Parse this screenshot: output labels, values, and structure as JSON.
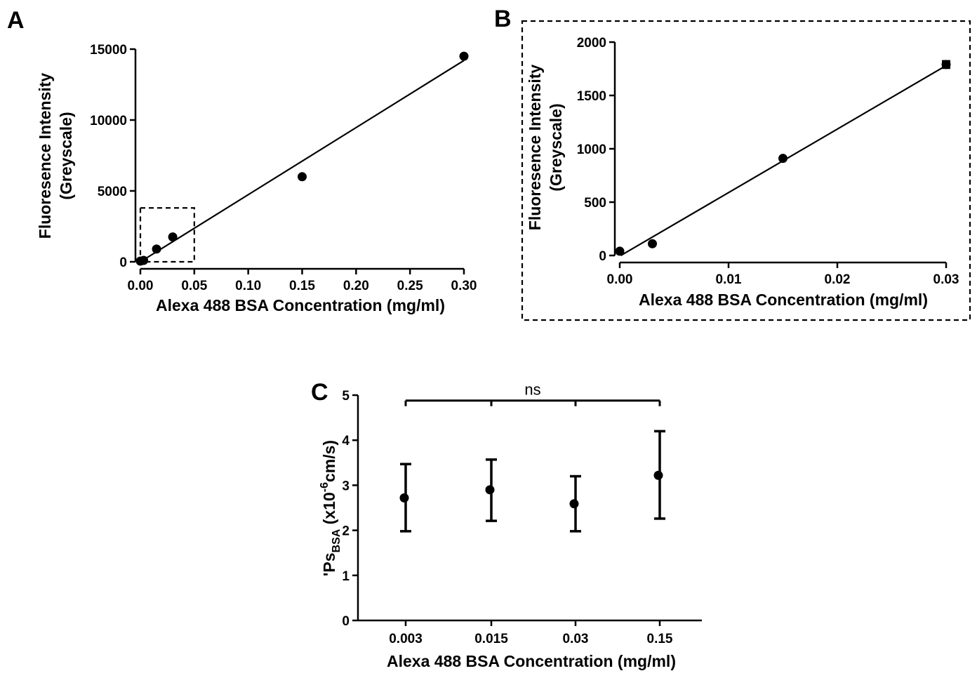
{
  "chart_data": [
    {
      "id": "A",
      "panel_label": "A",
      "type": "scatter",
      "xlabel": "Alexa 488 BSA Concentration (mg/ml)",
      "ylabel": [
        "Fluoresence Intensity",
        "(Greyscale)"
      ],
      "xlim": [
        0,
        0.3
      ],
      "ylim": [
        0,
        15000
      ],
      "xticks": [
        "0.00",
        "0.05",
        "0.10",
        "0.15",
        "0.20",
        "0.25",
        "0.30"
      ],
      "yticks": [
        "0",
        "5000",
        "10000",
        "15000"
      ],
      "points": [
        {
          "x": 0,
          "y": 50
        },
        {
          "x": 0.003,
          "y": 100
        },
        {
          "x": 0.015,
          "y": 900
        },
        {
          "x": 0.03,
          "y": 1750
        },
        {
          "x": 0.15,
          "y": 6000
        },
        {
          "x": 0.3,
          "y": 14500
        }
      ],
      "fit": {
        "x": [
          0,
          0.3
        ],
        "y": [
          0,
          14200
        ]
      },
      "inset_box": {
        "x": [
          0,
          0.05
        ],
        "y": [
          0,
          3800
        ]
      }
    },
    {
      "id": "B",
      "panel_label": "B",
      "type": "scatter",
      "xlabel": "Alexa 488 BSA Concentration (mg/ml)",
      "ylabel": [
        "Fluoresence Intensity",
        "(Greyscale)"
      ],
      "xlim": [
        0,
        0.03
      ],
      "ylim": [
        0,
        2000
      ],
      "xticks": [
        "0.00",
        "0.01",
        "0.02",
        "0.03"
      ],
      "yticks": [
        "0",
        "500",
        "1000",
        "1500",
        "2000"
      ],
      "points": [
        {
          "x": 0,
          "y": 40,
          "err": 0
        },
        {
          "x": 0.003,
          "y": 110,
          "err": 0
        },
        {
          "x": 0.015,
          "y": 910,
          "err": 0
        },
        {
          "x": 0.03,
          "y": 1790,
          "err": 30
        }
      ],
      "fit": {
        "x": [
          0.0001,
          0.03
        ],
        "y": [
          0,
          1780
        ]
      },
      "dashed_frame": true
    },
    {
      "id": "C",
      "panel_label": "C",
      "type": "scatter",
      "xlabel": "Alexa 488 BSA Concentration (mg/ml)",
      "ylabel_main": "'Ps",
      "ylabel_sub": "BSA",
      "ylabel_mid": " (x10",
      "ylabel_sup": "-6",
      "ylabel_end": "cm/s)",
      "ylim": [
        0,
        5
      ],
      "yticks": [
        "0",
        "1",
        "2",
        "3",
        "4",
        "5"
      ],
      "categories": [
        "0.003",
        "0.015",
        "0.03",
        "0.15"
      ],
      "points": [
        {
          "category": "0.003",
          "mean": 2.72,
          "low": 1.98,
          "high": 3.47
        },
        {
          "category": "0.015",
          "mean": 2.9,
          "low": 2.21,
          "high": 3.57
        },
        {
          "category": "0.03",
          "mean": 2.59,
          "low": 1.98,
          "high": 3.2
        },
        {
          "category": "0.15",
          "mean": 3.22,
          "low": 2.26,
          "high": 4.2
        }
      ],
      "significance": {
        "text": "ns",
        "y": 4.88
      }
    }
  ]
}
